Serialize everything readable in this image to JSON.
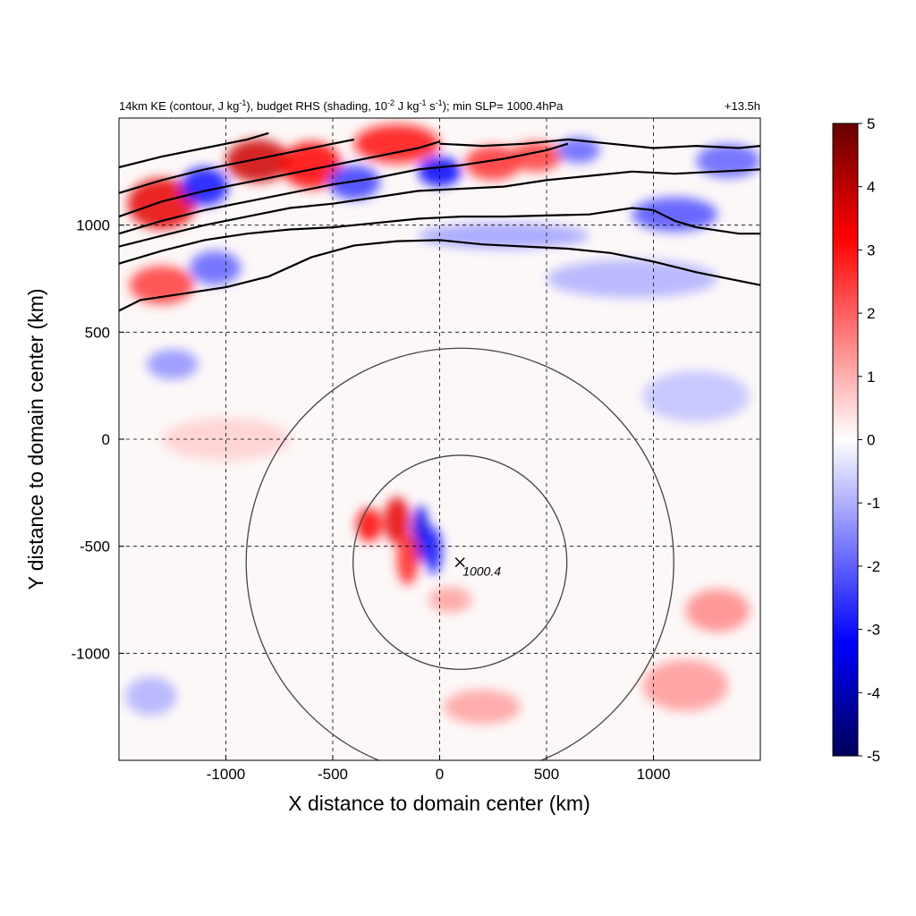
{
  "chart_data": {
    "type": "heatmap",
    "title": {
      "prefix": "14km KE (contour, J kg",
      "sup1": "-1",
      "mid1": "), budget RHS (shading, 10",
      "sup2": "-2",
      "mid2": " J kg",
      "sup3": "-1",
      "mid3": " s",
      "sup4": "-1",
      "suffix": "); min SLP= 1000.4hPa"
    },
    "time_label": "+13.5h",
    "xlabel": "X distance to domain center (km)",
    "ylabel": "Y distance to domain center (km)",
    "xlim": [
      -1500,
      1500
    ],
    "ylim": [
      -1500,
      1500
    ],
    "xticks": [
      -1000,
      -500,
      0,
      500,
      1000
    ],
    "yticks": [
      -1000,
      -500,
      0,
      500,
      1000
    ],
    "xtick_labels": [
      "-1000",
      "-500",
      "0",
      "500",
      "1000"
    ],
    "ytick_labels": [
      "-1000",
      "-500",
      "0",
      "500",
      "1000"
    ],
    "grid": "dashed",
    "colorbar": {
      "range": [
        -5,
        5
      ],
      "ticks": [
        "5",
        "4",
        "3",
        "2",
        "1",
        "0",
        "-1",
        "-2",
        "-3",
        "-4",
        "-5"
      ],
      "colors": [
        "#00005a",
        "#0000ff",
        "#ffffff",
        "#ff0000",
        "#660000"
      ]
    },
    "storm_center": {
      "x": 95,
      "y": -575,
      "label": "1000.4"
    },
    "range_circles_km": [
      500,
      1000
    ],
    "ke_contours": [
      [
        [
          -1500,
          600
        ],
        [
          -1400,
          650
        ],
        [
          -1200,
          680
        ],
        [
          -1000,
          710
        ],
        [
          -800,
          760
        ],
        [
          -600,
          850
        ],
        [
          -400,
          905
        ],
        [
          -200,
          925
        ],
        [
          0,
          930
        ],
        [
          200,
          910
        ],
        [
          400,
          900
        ],
        [
          600,
          890
        ],
        [
          800,
          870
        ],
        [
          1000,
          830
        ],
        [
          1200,
          780
        ],
        [
          1400,
          740
        ],
        [
          1500,
          720
        ]
      ],
      [
        [
          -1500,
          820
        ],
        [
          -1300,
          880
        ],
        [
          -1100,
          930
        ],
        [
          -900,
          960
        ],
        [
          -700,
          980
        ],
        [
          -500,
          990
        ],
        [
          -300,
          1010
        ],
        [
          -100,
          1030
        ],
        [
          100,
          1040
        ],
        [
          300,
          1040
        ],
        [
          500,
          1045
        ],
        [
          700,
          1050
        ],
        [
          900,
          1080
        ],
        [
          1000,
          1070
        ],
        [
          1100,
          1020
        ],
        [
          1200,
          990
        ],
        [
          1400,
          960
        ],
        [
          1500,
          960
        ]
      ],
      [
        [
          -1500,
          900
        ],
        [
          -1300,
          950
        ],
        [
          -1100,
          1000
        ],
        [
          -900,
          1040
        ],
        [
          -700,
          1080
        ],
        [
          -500,
          1100
        ],
        [
          -300,
          1130
        ],
        [
          -100,
          1160
        ],
        [
          100,
          1170
        ],
        [
          300,
          1180
        ],
        [
          500,
          1210
        ],
        [
          700,
          1230
        ],
        [
          900,
          1250
        ],
        [
          1100,
          1240
        ],
        [
          1300,
          1250
        ],
        [
          1500,
          1260
        ]
      ],
      [
        [
          -1500,
          960
        ],
        [
          -1300,
          1020
        ],
        [
          -1100,
          1070
        ],
        [
          -900,
          1110
        ],
        [
          -700,
          1150
        ],
        [
          -500,
          1190
        ],
        [
          -300,
          1220
        ],
        [
          -100,
          1260
        ],
        [
          100,
          1280
        ],
        [
          300,
          1310
        ],
        [
          500,
          1350
        ],
        [
          600,
          1380
        ]
      ],
      [
        [
          -1500,
          1040
        ],
        [
          -1300,
          1110
        ],
        [
          -1100,
          1160
        ],
        [
          -900,
          1200
        ],
        [
          -700,
          1240
        ],
        [
          -500,
          1280
        ],
        [
          -300,
          1320
        ],
        [
          -100,
          1360
        ],
        [
          0,
          1390
        ]
      ],
      [
        [
          -1500,
          1150
        ],
        [
          -1300,
          1210
        ],
        [
          -1100,
          1260
        ],
        [
          -900,
          1300
        ],
        [
          -700,
          1340
        ],
        [
          -500,
          1380
        ],
        [
          -400,
          1400
        ]
      ],
      [
        [
          -1500,
          1270
        ],
        [
          -1300,
          1320
        ],
        [
          -1100,
          1360
        ],
        [
          -900,
          1400
        ],
        [
          -800,
          1430
        ]
      ],
      [
        [
          0,
          1380
        ],
        [
          200,
          1370
        ],
        [
          400,
          1380
        ],
        [
          600,
          1400
        ],
        [
          800,
          1380
        ],
        [
          1000,
          1360
        ],
        [
          1200,
          1370
        ],
        [
          1400,
          1360
        ],
        [
          1500,
          1370
        ]
      ]
    ],
    "shading_features": [
      {
        "x": -1300,
        "y": 1100,
        "rx": 160,
        "ry": 120,
        "v": 3.5
      },
      {
        "x": -1100,
        "y": 1180,
        "rx": 110,
        "ry": 90,
        "v": -3.0
      },
      {
        "x": -850,
        "y": 1300,
        "rx": 150,
        "ry": 100,
        "v": 3.8
      },
      {
        "x": -600,
        "y": 1280,
        "rx": 140,
        "ry": 110,
        "v": 3.2
      },
      {
        "x": -400,
        "y": 1200,
        "rx": 120,
        "ry": 80,
        "v": -2.5
      },
      {
        "x": -200,
        "y": 1380,
        "rx": 200,
        "ry": 90,
        "v": 3.0
      },
      {
        "x": 0,
        "y": 1250,
        "rx": 100,
        "ry": 70,
        "v": -3.2
      },
      {
        "x": 250,
        "y": 1290,
        "rx": 130,
        "ry": 80,
        "v": 2.6
      },
      {
        "x": 450,
        "y": 1320,
        "rx": 120,
        "ry": 70,
        "v": 2.5
      },
      {
        "x": 650,
        "y": 1350,
        "rx": 100,
        "ry": 60,
        "v": -2.0
      },
      {
        "x": 1100,
        "y": 1050,
        "rx": 200,
        "ry": 80,
        "v": -2.2
      },
      {
        "x": 1350,
        "y": 1300,
        "rx": 150,
        "ry": 80,
        "v": -2.0
      },
      {
        "x": -1300,
        "y": 720,
        "rx": 150,
        "ry": 90,
        "v": 2.5
      },
      {
        "x": -1050,
        "y": 800,
        "rx": 120,
        "ry": 80,
        "v": -2.0
      },
      {
        "x": 300,
        "y": 950,
        "rx": 400,
        "ry": 60,
        "v": -1.2
      },
      {
        "x": 900,
        "y": 750,
        "rx": 400,
        "ry": 90,
        "v": -1.0
      },
      {
        "x": -1250,
        "y": 350,
        "rx": 120,
        "ry": 70,
        "v": -1.4
      },
      {
        "x": -200,
        "y": -380,
        "rx": 60,
        "ry": 110,
        "v": 3.5
      },
      {
        "x": -90,
        "y": -440,
        "rx": 40,
        "ry": 130,
        "v": -3.5
      },
      {
        "x": -330,
        "y": -400,
        "rx": 60,
        "ry": 80,
        "v": 3.2
      },
      {
        "x": -150,
        "y": -560,
        "rx": 50,
        "ry": 120,
        "v": 2.8
      },
      {
        "x": -30,
        "y": -520,
        "rx": 40,
        "ry": 110,
        "v": -3.0
      },
      {
        "x": 50,
        "y": -750,
        "rx": 100,
        "ry": 60,
        "v": 1.2
      },
      {
        "x": 1300,
        "y": -800,
        "rx": 150,
        "ry": 100,
        "v": 1.5
      },
      {
        "x": 1150,
        "y": -1150,
        "rx": 200,
        "ry": 120,
        "v": 1.3
      },
      {
        "x": 200,
        "y": -1250,
        "rx": 180,
        "ry": 80,
        "v": 1.2
      },
      {
        "x": -1350,
        "y": -1200,
        "rx": 120,
        "ry": 90,
        "v": -1.0
      },
      {
        "x": -1000,
        "y": 0,
        "rx": 300,
        "ry": 100,
        "v": 0.6
      },
      {
        "x": 1200,
        "y": 200,
        "rx": 250,
        "ry": 120,
        "v": -0.8
      }
    ]
  }
}
